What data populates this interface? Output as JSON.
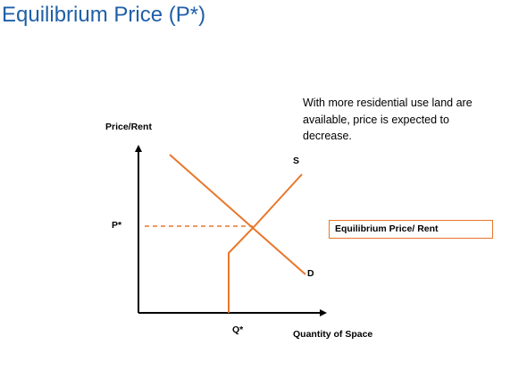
{
  "title": "Equilibrium Price (P*)",
  "note_lines": [
    "With more residential use land are",
    "available, price is expected to",
    "decrease."
  ],
  "diagram": {
    "y_axis_label": "Price/Rent",
    "x_axis_label": "Quantity of Space",
    "price_marker": "P*",
    "quantity_marker": "Q*",
    "supply_label": "S",
    "demand_label": "D",
    "callout": "Equilibrium Price/ Rent",
    "curve_color": "#e8762a",
    "title_color": "#1f5fa8"
  }
}
